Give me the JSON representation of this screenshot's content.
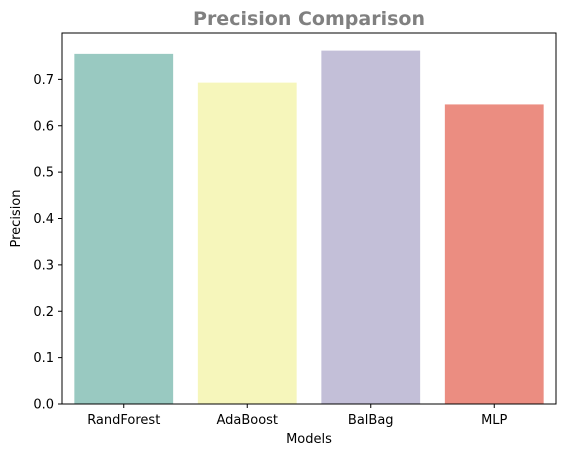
{
  "chart_data": {
    "type": "bar",
    "title": "Precision Comparison",
    "xlabel": "Models",
    "ylabel": "Precision",
    "categories": [
      "RandForest",
      "AdaBoost",
      "BalBag",
      "MLP"
    ],
    "values": [
      0.755,
      0.693,
      0.762,
      0.646
    ],
    "colors": [
      "#99c9c1",
      "#f6f6bb",
      "#c3bfd8",
      "#eb8d81"
    ],
    "ylim": [
      0,
      0.8
    ],
    "yticks": [
      0.0,
      0.1,
      0.2,
      0.3,
      0.4,
      0.5,
      0.6,
      0.7
    ],
    "ytick_labels": [
      "0.0",
      "0.1",
      "0.2",
      "0.3",
      "0.4",
      "0.5",
      "0.6",
      "0.7"
    ],
    "grid": false,
    "legend": "none"
  }
}
